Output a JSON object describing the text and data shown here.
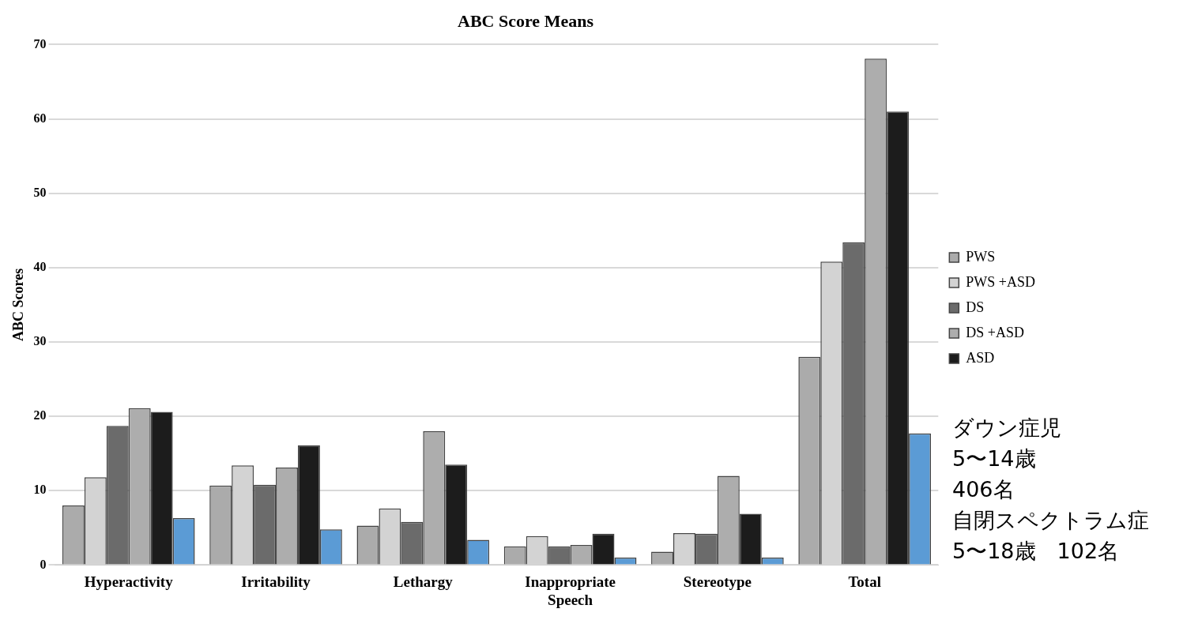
{
  "chart_data": {
    "type": "bar",
    "title": "ABC Score Means",
    "ylabel": "ABC Scores",
    "categories": [
      "Hyperactivity",
      "Irritability",
      "Lethargy",
      "Inappropriate Speech",
      "Stereotype",
      "Total"
    ],
    "series": [
      {
        "name": "PWS",
        "color": "#ababab",
        "values": [
          8.0,
          10.7,
          5.3,
          2.5,
          1.8,
          28.0
        ]
      },
      {
        "name": "PWS +ASD",
        "color": "#d3d3d3",
        "values": [
          11.8,
          13.4,
          7.6,
          3.9,
          4.3,
          40.8
        ]
      },
      {
        "name": "DS",
        "color": "#6b6b6b",
        "values": [
          18.7,
          10.8,
          5.8,
          2.5,
          4.2,
          43.4
        ]
      },
      {
        "name": "DS +ASD",
        "color": "#adadad",
        "values": [
          21.1,
          13.1,
          18.0,
          2.7,
          12.0,
          68.1
        ]
      },
      {
        "name": "ASD",
        "color": "#1c1c1c",
        "values": [
          20.6,
          16.1,
          13.5,
          4.2,
          6.9,
          61.0
        ]
      },
      {
        "color": "#5b9bd5",
        "values": [
          6.3,
          4.8,
          3.4,
          1.0,
          1.0,
          17.7
        ]
      }
    ],
    "ylim": [
      0,
      70
    ],
    "yticks": [
      0,
      10,
      20,
      30,
      40,
      50,
      60,
      70
    ],
    "grid": "y",
    "legend": "right",
    "annotations": [
      "ダウン症児",
      "5〜14歳",
      "406名",
      "自閉スペクトラム症",
      "5〜18歳　102名"
    ]
  }
}
